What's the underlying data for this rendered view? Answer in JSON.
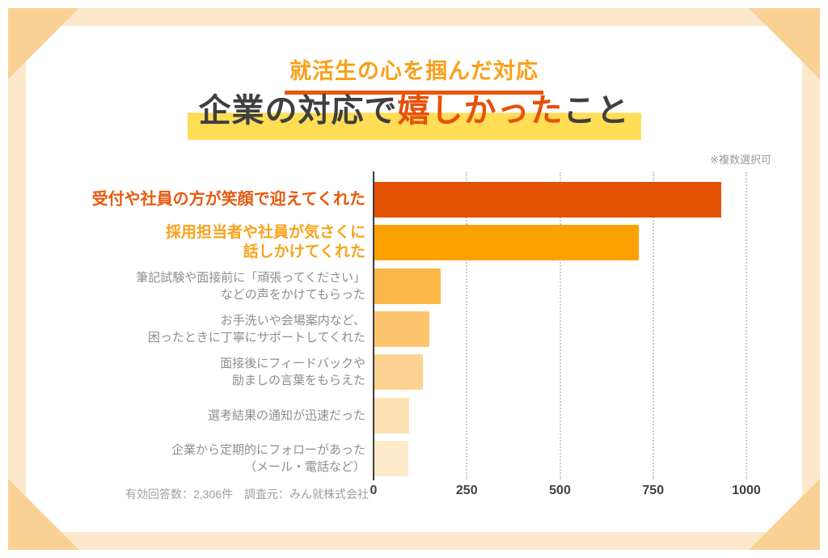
{
  "frame": {
    "band_color": "#FCE9CD",
    "corner_color": "#FAD194"
  },
  "header": {
    "subtitle": "就活生の心を掴んだ対応",
    "subtitle_color": "#F9A018",
    "underline_color": "#E8580C",
    "highlight_color": "#FFDD55",
    "title_segments": [
      {
        "text": "企業の対応で",
        "color": "#3F3F3F"
      },
      {
        "text": "嬉しかった",
        "color": "#E8500A"
      },
      {
        "text": "こと",
        "color": "#3F3F3F"
      }
    ],
    "note": "※複数選択可"
  },
  "chart_data": {
    "type": "bar",
    "orientation": "horizontal",
    "title": "企業の対応で嬉しかったこと",
    "xlabel": "",
    "ylabel": "",
    "xlim": [
      0,
      1000
    ],
    "x_ticks": [
      0,
      250,
      500,
      750,
      1000
    ],
    "grid": "dotted-vertical-gridlines",
    "legend": "none",
    "categories": [
      "受付や社員の方が笑顔で迎えてくれた",
      "採用担当者や社員が気さくに話しかけてくれた",
      "筆記試験や面接前に「頑張ってください」などの声をかけてもらった",
      "お手洗いや会場案内など、困ったときに丁寧にサポートしてくれた",
      "面接後にフィードバックや励ましの言葉をもらえた",
      "選考結果の通知が迅速だった",
      "企業から定期的にフォローがあった（メール・電話など）"
    ],
    "label_lines": [
      [
        "受付や社員の方が笑顔で迎えてくれた"
      ],
      [
        "採用担当者や社員が気さくに",
        "話しかけてくれた"
      ],
      [
        "筆記試験や面接前に「頑張ってください」",
        "などの声をかけてもらった"
      ],
      [
        "お手洗いや会場案内など、",
        "困ったときに丁寧にサポートしてくれた"
      ],
      [
        "面接後にフィードバックや",
        "励ましの言葉をもらえた"
      ],
      [
        "選考結果の通知が迅速だった"
      ],
      [
        "企業から定期的にフォローがあった",
        "（メール・電話など）"
      ]
    ],
    "values": [
      930,
      710,
      178,
      148,
      131,
      94,
      91
    ],
    "bar_colors": [
      "#E45206",
      "#FBA100",
      "#FBB747",
      "#FCC56E",
      "#FCD391",
      "#FDE1B3",
      "#FDEACA"
    ],
    "label_styles": [
      {
        "color": "#E8590C",
        "weight": 800,
        "size": 20,
        "line_height": 25
      },
      {
        "color": "#F9A21B",
        "weight": 800,
        "size": 19,
        "line_height": 24
      },
      {
        "color": "#8E8E8E",
        "weight": 500,
        "size": 15,
        "line_height": 21
      },
      {
        "color": "#8E8E8E",
        "weight": 500,
        "size": 15,
        "line_height": 21
      },
      {
        "color": "#8E8E8E",
        "weight": 500,
        "size": 15,
        "line_height": 21
      },
      {
        "color": "#8E8E8E",
        "weight": 500,
        "size": 15,
        "line_height": 21
      },
      {
        "color": "#8E8E8E",
        "weight": 500,
        "size": 15,
        "line_height": 21
      }
    ]
  },
  "footer": {
    "text": "有効回答数：2,306件　調査元：みん就株式会社"
  }
}
